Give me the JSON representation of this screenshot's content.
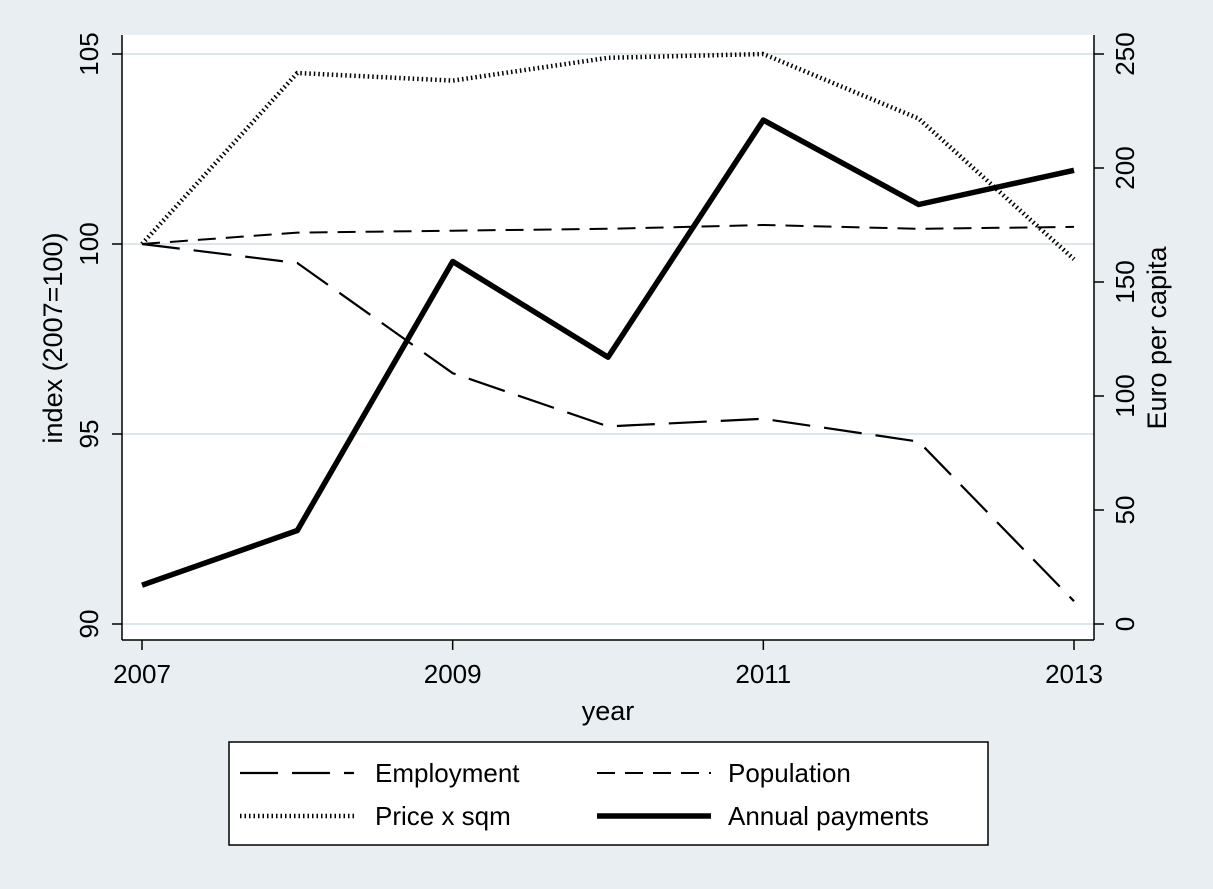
{
  "chart_data": {
    "type": "line",
    "title": "",
    "xlabel": "year",
    "ylabel_left": "index (2007=100)",
    "ylabel_right": "Euro per capita",
    "x": [
      2007,
      2008,
      2009,
      2010,
      2011,
      2012,
      2013
    ],
    "x_ticks": [
      "2007",
      "2009",
      "2011",
      "2013"
    ],
    "ylim_left": [
      90,
      105
    ],
    "yticks_left": [
      "90",
      "95",
      "100",
      "105"
    ],
    "ylim_right": [
      0,
      250
    ],
    "yticks_right": [
      "0",
      "50",
      "100",
      "150",
      "200",
      "250"
    ],
    "grid": true,
    "legend_position": "bottom",
    "series": [
      {
        "name": "Employment",
        "axis": "left",
        "style": "long-dash",
        "values": [
          100.0,
          99.5,
          96.6,
          95.2,
          95.4,
          94.8,
          90.6
        ]
      },
      {
        "name": "Population",
        "axis": "left",
        "style": "short-dash",
        "values": [
          100.0,
          100.3,
          100.35,
          100.4,
          100.5,
          100.4,
          100.45
        ]
      },
      {
        "name": "Price x sqm",
        "axis": "left",
        "style": "dotted",
        "values": [
          100.0,
          104.5,
          104.3,
          104.9,
          105.0,
          103.3,
          99.6
        ]
      },
      {
        "name": "Annual payments",
        "axis": "right",
        "style": "solid-thick",
        "values": [
          17,
          41,
          159,
          117,
          221,
          184,
          199
        ]
      }
    ]
  }
}
